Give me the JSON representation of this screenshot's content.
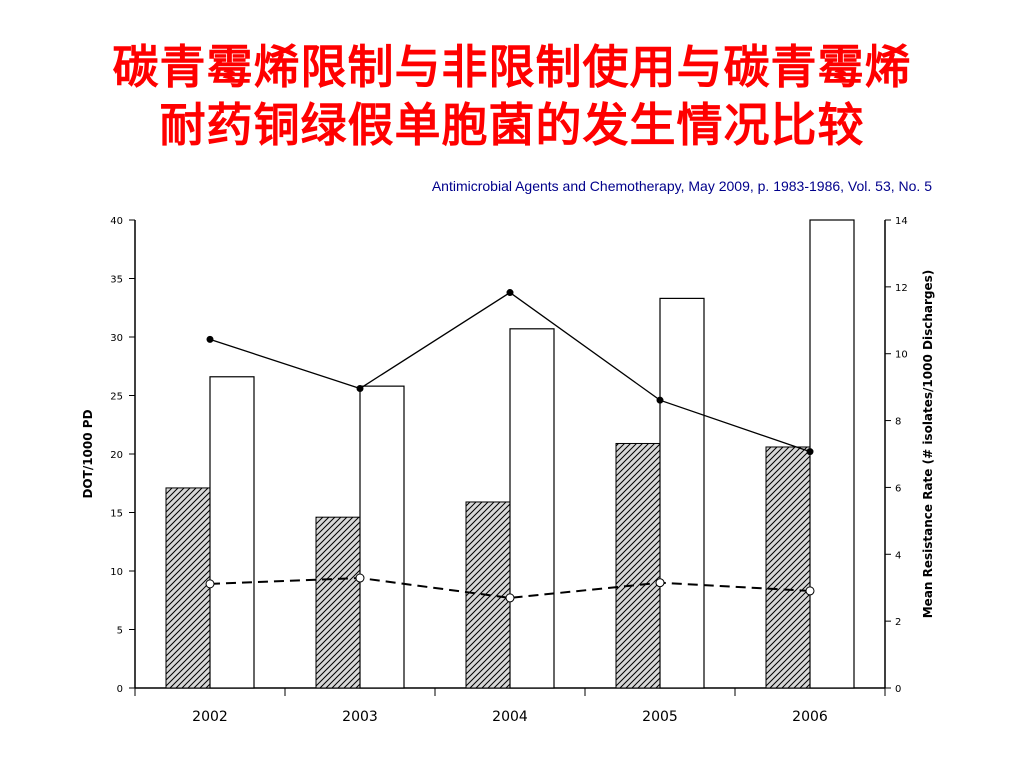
{
  "slide": {
    "title_line1": "碳青霉烯限制与非限制使用与碳青霉烯",
    "title_line2": "耐药铜绿假单胞菌的发生情况比较",
    "citation": "Antimicrobial Agents and Chemotherapy, May 2009, p. 1983-1986, Vol. 53, No. 5"
  },
  "colors": {
    "title": "#ff0000",
    "citation": "#00008b",
    "ink": "#000000",
    "hatch_bg": "#d8d8d8"
  },
  "chart_data": {
    "type": "bar",
    "categories": [
      "2002",
      "2003",
      "2004",
      "2005",
      "2006"
    ],
    "ylabel": "DOT/1000 PD",
    "y2label": "Mean Resistance Rate (# isolates/1000 Discharges)",
    "ylim": [
      0,
      40
    ],
    "y2lim": [
      0,
      14
    ],
    "yticks": [
      "0",
      "5",
      "10",
      "15",
      "20",
      "25",
      "30",
      "35",
      "40"
    ],
    "y2ticks": [
      "0",
      "2",
      "4",
      "6",
      "8",
      "10",
      "12",
      "14"
    ],
    "series": [
      {
        "style": "hatched bar",
        "axis": "left",
        "values": [
          17.1,
          14.6,
          15.9,
          20.9,
          20.6
        ]
      },
      {
        "style": "white bar",
        "axis": "left",
        "values": [
          26.6,
          25.8,
          30.7,
          33.3,
          40.0
        ]
      },
      {
        "style": "solid line, filled markers",
        "axis": "left",
        "values": [
          29.8,
          25.6,
          33.8,
          24.6,
          20.2
        ]
      },
      {
        "style": "dashed line, open markers",
        "axis": "left",
        "values": [
          8.9,
          9.4,
          7.7,
          9.0,
          8.3
        ]
      }
    ]
  }
}
